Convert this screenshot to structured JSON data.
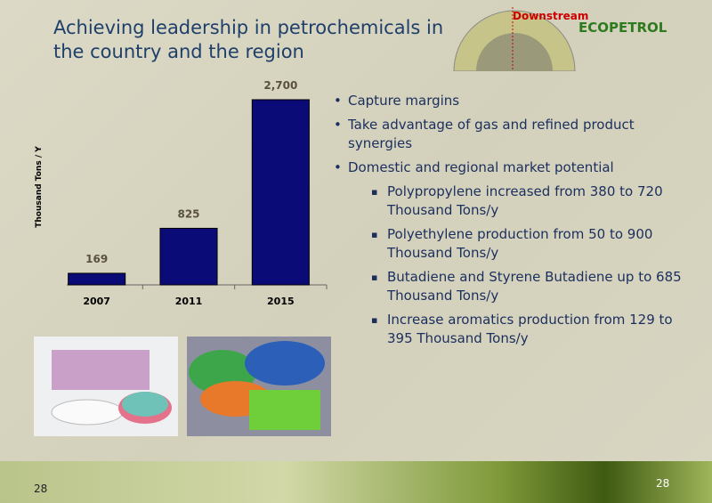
{
  "slide": {
    "title": "Achieving leadership in petrochemicals in the country and the region",
    "logo_section": "Downstream",
    "logo_brand": "ECOPETROL",
    "bullets": [
      {
        "text": "Capture margins"
      },
      {
        "text": "Take advantage of gas and refined product synergies"
      },
      {
        "text": "Domestic and regional market potential",
        "items": [
          "Polypropylene increased from 380 to 720 Thousand Tons/y",
          "Polyethylene production from 50 to 900 Thousand Tons/y",
          "Butadiene and Styrene Butadiene up to 685 Thousand Tons/y",
          "Increase aromatics production from 129 to 395 Thousand Tons/y"
        ]
      }
    ],
    "page_number_left": "28",
    "page_number_right": "28"
  },
  "chart_data": {
    "type": "bar",
    "y_label": "Thousand Tons / Y",
    "categories": [
      "2007",
      "2011",
      "2015"
    ],
    "values": [
      169,
      825,
      2700
    ],
    "value_labels": [
      "169",
      "825",
      "2,700"
    ],
    "color": "#0b0b78",
    "ylim": [
      0,
      2700
    ]
  }
}
